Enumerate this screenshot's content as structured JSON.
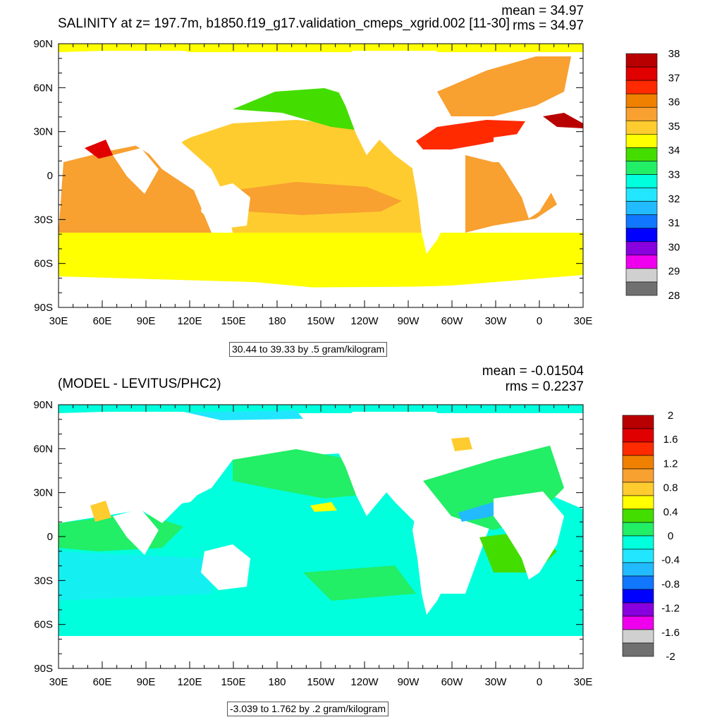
{
  "top_panel": {
    "title": "SALINITY at z= 197.7m, b1850.f19_g17.validation_cmeps_xgrid.002 [11-30]",
    "mean": "mean = 34.97",
    "rms": "rms = 34.97",
    "note": "30.44 to 39.33 by .5 gram/kilogram",
    "colorbar_labels": [
      "38",
      "37",
      "36",
      "35",
      "34",
      "33",
      "32",
      "31",
      "30",
      "29",
      "28"
    ],
    "colorbar_colors": [
      "#b80000",
      "#e00000",
      "#ff2a00",
      "#f08000",
      "#f8a030",
      "#ffcc30",
      "#ffff00",
      "#44dd00",
      "#22ee66",
      "#00ffdd",
      "#22e6ff",
      "#22bbff",
      "#1177ff",
      "#0000ff",
      "#8800dd",
      "#ee00ee",
      "#d0d0d0",
      "#707070"
    ]
  },
  "bottom_panel": {
    "title": "(MODEL - LEVITUS/PHC2)",
    "mean": "mean = -0.01504",
    "rms": "rms = 0.2237",
    "note": "-3.039 to 1.762 by .2 gram/kilogram",
    "colorbar_labels": [
      "2",
      "1.6",
      "1.2",
      "0.8",
      "0.4",
      "0",
      "-0.4",
      "-0.8",
      "-1.2",
      "-1.6",
      "-2"
    ],
    "colorbar_colors": [
      "#b80000",
      "#e00000",
      "#ff2a00",
      "#f08000",
      "#f8a030",
      "#ffcc30",
      "#ffff00",
      "#44dd00",
      "#22ee66",
      "#00ffdd",
      "#22e6ff",
      "#22bbff",
      "#1177ff",
      "#0000ff",
      "#8800dd",
      "#ee00ee",
      "#d0d0d0",
      "#707070"
    ]
  },
  "axes": {
    "lat_labels": [
      "90N",
      "60N",
      "30N",
      "0",
      "30S",
      "60S",
      "90S"
    ],
    "lon_labels": [
      "30E",
      "60E",
      "90E",
      "120E",
      "150E",
      "180",
      "150W",
      "120W",
      "90W",
      "60W",
      "30W",
      "0",
      "30E"
    ]
  }
}
